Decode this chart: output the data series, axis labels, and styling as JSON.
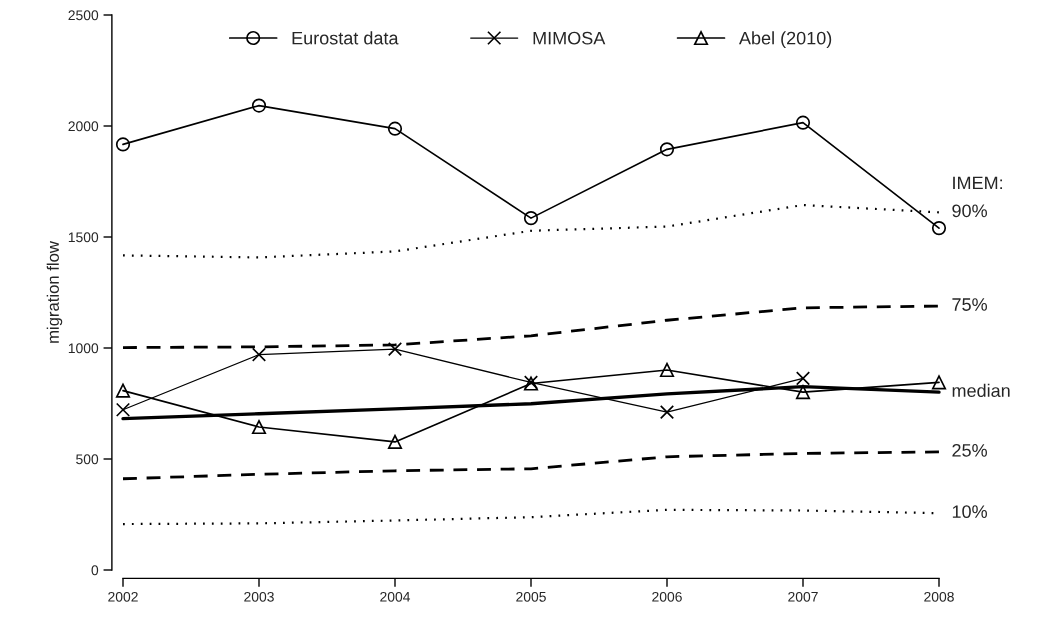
{
  "chart_data": {
    "type": "line",
    "ylabel": "migration flow",
    "x": [
      2002,
      2003,
      2004,
      2005,
      2006,
      2007,
      2008
    ],
    "xlim": [
      2002,
      2008
    ],
    "xticks": [
      2002,
      2003,
      2004,
      2005,
      2006,
      2007,
      2008
    ],
    "ylim": [
      0,
      2500
    ],
    "yticks": [
      0,
      500,
      1000,
      1500,
      2000,
      2500
    ],
    "grid": false,
    "legend": "top",
    "annotations": [
      "IMEM:"
    ],
    "series": [
      {
        "name": "Eurostat data",
        "color": "#000000",
        "marker": "circle",
        "line_style": "solid",
        "values": [
          1917,
          2092,
          1988,
          1585,
          1895,
          2015,
          1540
        ]
      },
      {
        "name": "MIMOSA",
        "color": "#000000",
        "marker": "cross",
        "line_style": "solid",
        "values": [
          722,
          970,
          995,
          845,
          711,
          863,
          null
        ]
      },
      {
        "name": "Abel (2010)",
        "color": "#000000",
        "marker": "triangle",
        "line_style": "solid",
        "values": [
          808,
          644,
          577,
          840,
          901,
          801,
          845
        ]
      },
      {
        "name": "90%",
        "color": "#000000",
        "marker": "none",
        "line_style": "dotted",
        "values": [
          1417,
          1408,
          1435,
          1528,
          1547,
          1644,
          1611
        ]
      },
      {
        "name": "75%",
        "color": "#000000",
        "marker": "none",
        "line_style": "dashed",
        "values": [
          1002,
          1005,
          1014,
          1055,
          1125,
          1181,
          1189
        ]
      },
      {
        "name": "median",
        "color": "#000000",
        "marker": "none",
        "line_style": "solid",
        "values": [
          682,
          704,
          726,
          749,
          793,
          826,
          801
        ]
      },
      {
        "name": "25%",
        "color": "#000000",
        "marker": "none",
        "line_style": "dashed",
        "values": [
          411,
          431,
          447,
          456,
          510,
          525,
          532
        ]
      },
      {
        "name": "10%",
        "color": "#000000",
        "marker": "none",
        "line_style": "dotted",
        "values": [
          207,
          210,
          223,
          238,
          271,
          268,
          256
        ]
      }
    ]
  }
}
